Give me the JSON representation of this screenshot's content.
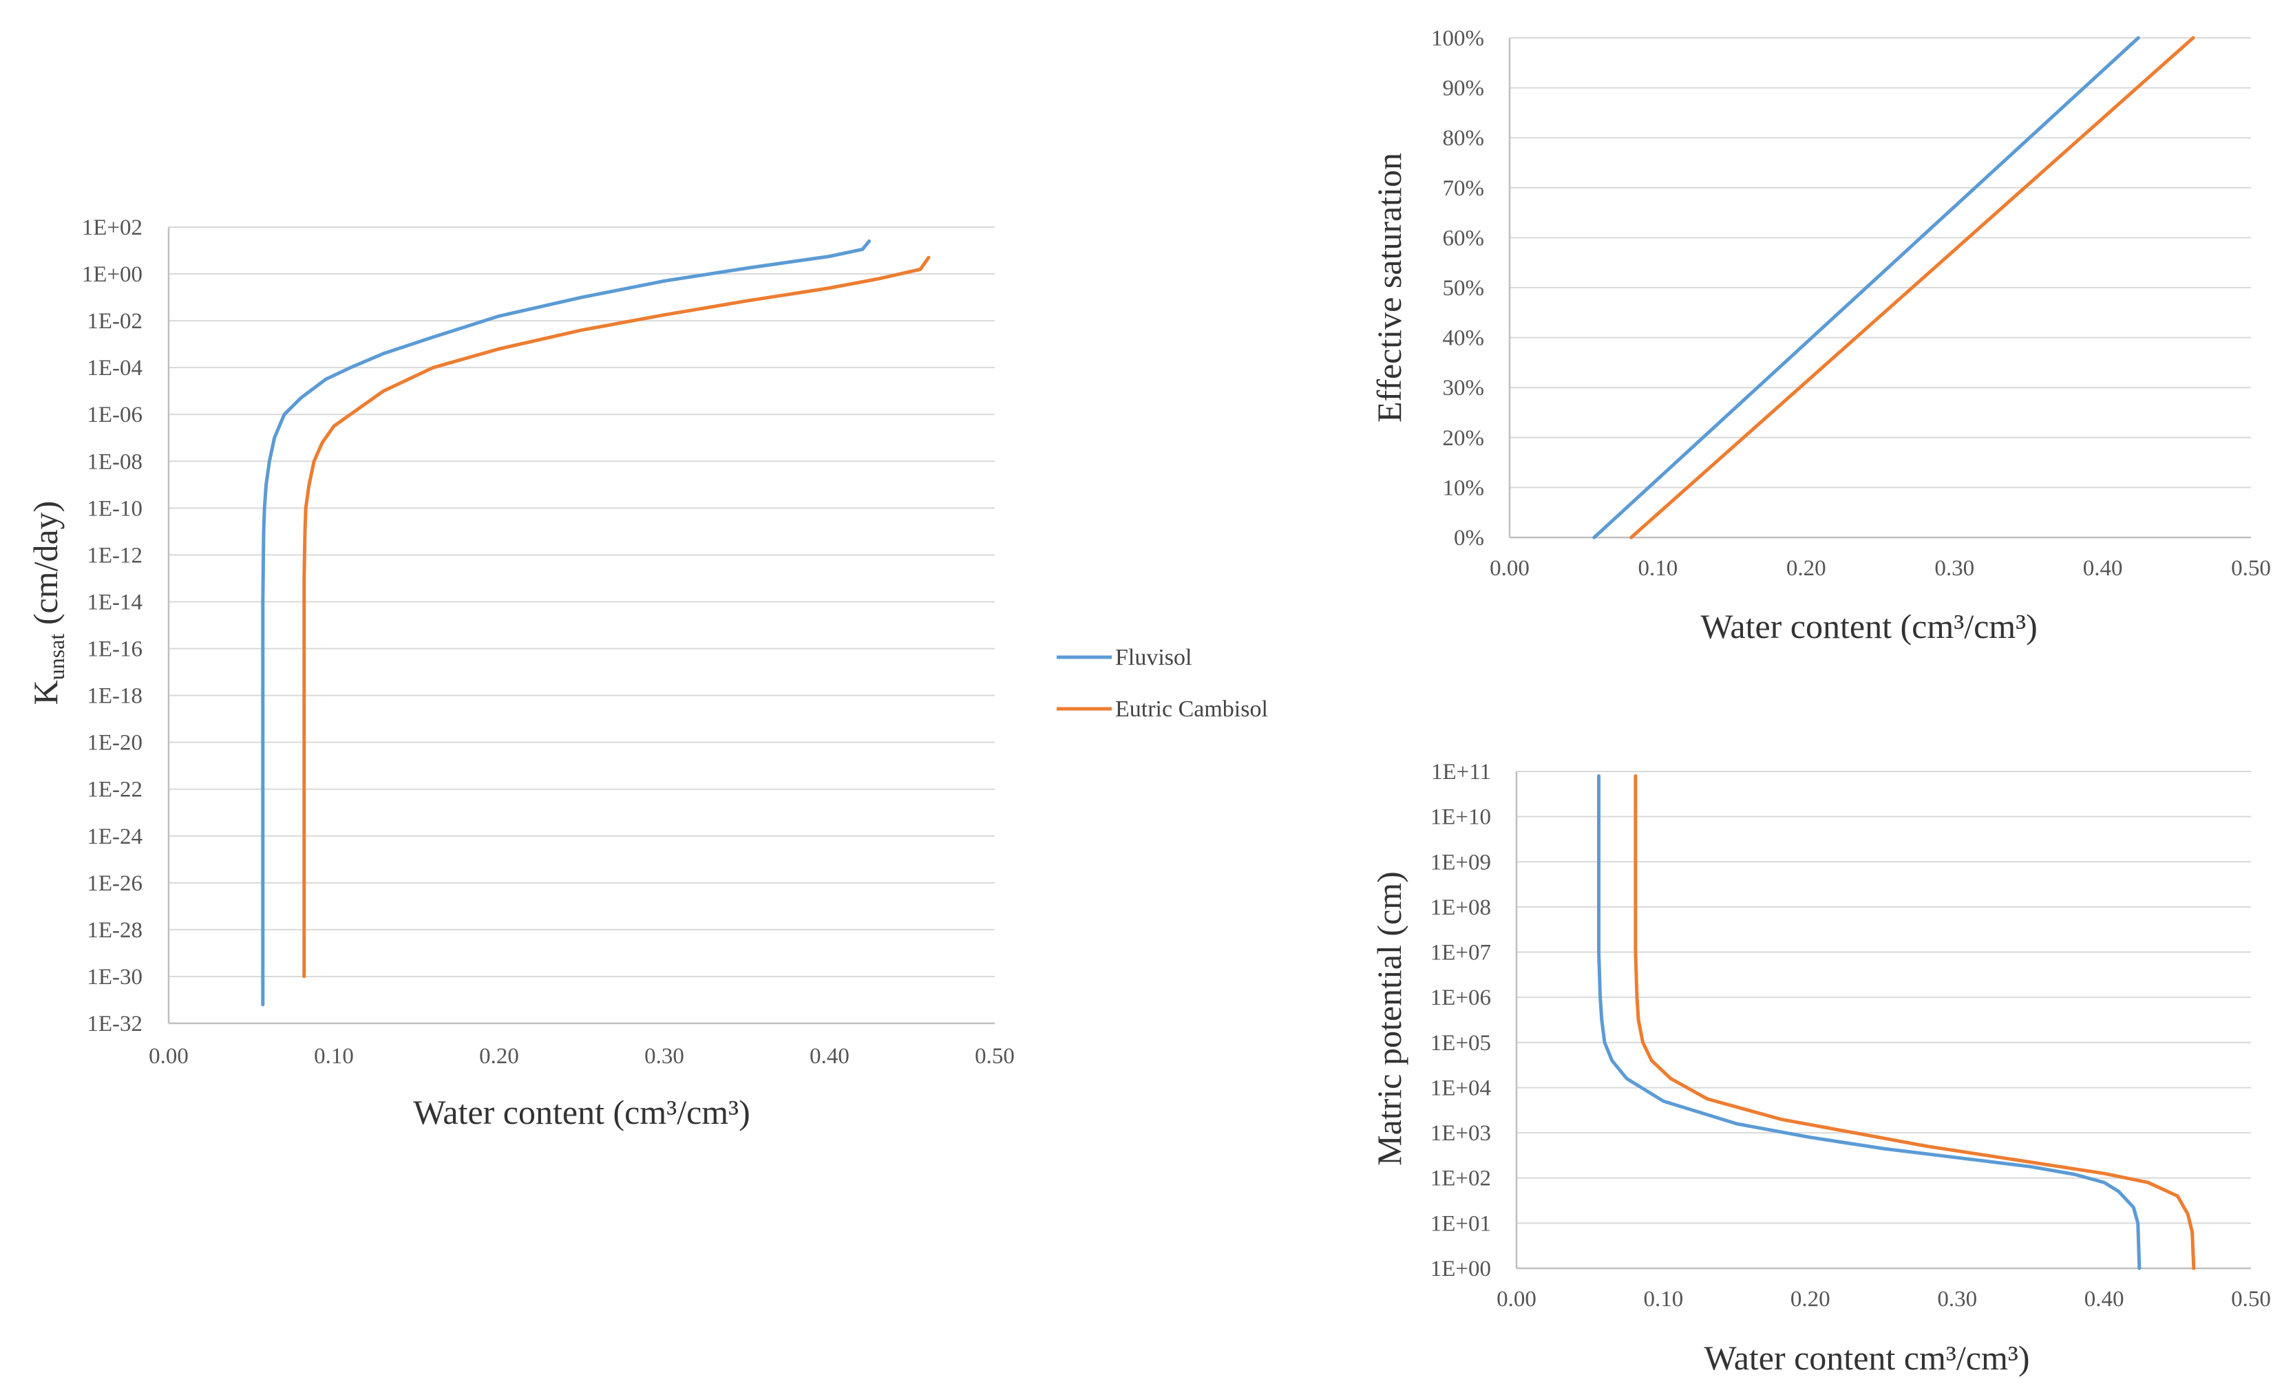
{
  "colors": {
    "fluvisol": "#5b9bd5",
    "cambisol": "#ed7d31"
  },
  "legend": [
    {
      "name": "Fluvisol",
      "color": "#5b9bd5"
    },
    {
      "name": "Eutric Cambisol",
      "color": "#ed7d31"
    }
  ],
  "chart_data": [
    {
      "id": "kunsat",
      "type": "line",
      "xscale": "linear",
      "yscale": "log",
      "xlabel": "Water content (cm³/cm³)",
      "ylabel_main": "K",
      "ylabel_sub": "unsat",
      "ylabel_rest": " (cm/day)",
      "xlim": [
        0,
        0.5
      ],
      "ylim_exp": [
        -32,
        2
      ],
      "x_ticks": [
        "0.00",
        "0.10",
        "0.20",
        "0.30",
        "0.40",
        "0.50"
      ],
      "y_ticks": [
        "1E+02",
        "1E+00",
        "1E-02",
        "1E-04",
        "1E-06",
        "1E-08",
        "1E-10",
        "1E-12",
        "1E-14",
        "1E-16",
        "1E-18",
        "1E-20",
        "1E-22",
        "1E-24",
        "1E-26",
        "1E-28",
        "1E-30",
        "1E-32"
      ],
      "series": [
        {
          "name": "Fluvisol",
          "color": "#5b9bd5",
          "points": [
            [
              0.057,
              -31.2
            ],
            [
              0.057,
              -20
            ],
            [
              0.057,
              -14
            ],
            [
              0.0575,
              -11
            ],
            [
              0.058,
              -10
            ],
            [
              0.059,
              -9
            ],
            [
              0.061,
              -8
            ],
            [
              0.064,
              -7
            ],
            [
              0.07,
              -6
            ],
            [
              0.08,
              -5.3
            ],
            [
              0.095,
              -4.5
            ],
            [
              0.11,
              -4
            ],
            [
              0.13,
              -3.4
            ],
            [
              0.16,
              -2.7
            ],
            [
              0.2,
              -1.8
            ],
            [
              0.25,
              -1
            ],
            [
              0.3,
              -0.3
            ],
            [
              0.35,
              0.25
            ],
            [
              0.4,
              0.75
            ],
            [
              0.42,
              1.05
            ],
            [
              0.424,
              1.4
            ]
          ]
        },
        {
          "name": "Eutric Cambisol",
          "color": "#ed7d31",
          "points": [
            [
              0.082,
              -30
            ],
            [
              0.082,
              -20
            ],
            [
              0.082,
              -13
            ],
            [
              0.0825,
              -11
            ],
            [
              0.083,
              -10
            ],
            [
              0.085,
              -9
            ],
            [
              0.088,
              -8
            ],
            [
              0.093,
              -7.2
            ],
            [
              0.1,
              -6.5
            ],
            [
              0.11,
              -6
            ],
            [
              0.13,
              -5
            ],
            [
              0.16,
              -4
            ],
            [
              0.2,
              -3.2
            ],
            [
              0.25,
              -2.4
            ],
            [
              0.3,
              -1.75
            ],
            [
              0.35,
              -1.15
            ],
            [
              0.4,
              -0.6
            ],
            [
              0.43,
              -0.2
            ],
            [
              0.455,
              0.2
            ],
            [
              0.46,
              0.7
            ]
          ]
        }
      ]
    },
    {
      "id": "saturation",
      "type": "line",
      "xscale": "linear",
      "yscale": "linear",
      "xlabel": "Water content (cm³/cm³)",
      "ylabel": "Effective saturation",
      "xlim": [
        0,
        0.5
      ],
      "ylim": [
        0,
        100
      ],
      "x_ticks": [
        "0.00",
        "0.10",
        "0.20",
        "0.30",
        "0.40",
        "0.50"
      ],
      "y_ticks": [
        "0%",
        "10%",
        "20%",
        "30%",
        "40%",
        "50%",
        "60%",
        "70%",
        "80%",
        "90%",
        "100%"
      ],
      "series": [
        {
          "name": "Fluvisol",
          "color": "#5b9bd5",
          "points": [
            [
              0.057,
              0
            ],
            [
              0.424,
              100
            ]
          ]
        },
        {
          "name": "Eutric Cambisol",
          "color": "#ed7d31",
          "points": [
            [
              0.082,
              0
            ],
            [
              0.461,
              100
            ]
          ]
        }
      ]
    },
    {
      "id": "matric",
      "type": "line",
      "xscale": "linear",
      "yscale": "log",
      "xlabel": "Water content cm³/cm³)",
      "ylabel": "Matric potential (cm)",
      "xlim": [
        0,
        0.5
      ],
      "ylim_exp": [
        0,
        11
      ],
      "x_ticks": [
        "0.00",
        "0.10",
        "0.20",
        "0.30",
        "0.40",
        "0.50"
      ],
      "y_ticks": [
        "1E+00",
        "1E+01",
        "1E+02",
        "1E+03",
        "1E+04",
        "1E+05",
        "1E+06",
        "1E+07",
        "1E+08",
        "1E+09",
        "1E+10",
        "1E+11"
      ],
      "series": [
        {
          "name": "Fluvisol",
          "color": "#5b9bd5",
          "points": [
            [
              0.056,
              10.9
            ],
            [
              0.056,
              9
            ],
            [
              0.056,
              7
            ],
            [
              0.057,
              6
            ],
            [
              0.058,
              5.5
            ],
            [
              0.06,
              5
            ],
            [
              0.065,
              4.6
            ],
            [
              0.075,
              4.2
            ],
            [
              0.1,
              3.7
            ],
            [
              0.15,
              3.2
            ],
            [
              0.2,
              2.9
            ],
            [
              0.25,
              2.65
            ],
            [
              0.3,
              2.45
            ],
            [
              0.35,
              2.25
            ],
            [
              0.38,
              2.08
            ],
            [
              0.4,
              1.9
            ],
            [
              0.41,
              1.7
            ],
            [
              0.42,
              1.35
            ],
            [
              0.423,
              1
            ],
            [
              0.424,
              0
            ]
          ]
        },
        {
          "name": "Eutric Cambisol",
          "color": "#ed7d31",
          "points": [
            [
              0.081,
              10.9
            ],
            [
              0.081,
              9
            ],
            [
              0.081,
              7
            ],
            [
              0.082,
              6
            ],
            [
              0.083,
              5.5
            ],
            [
              0.086,
              5
            ],
            [
              0.092,
              4.6
            ],
            [
              0.105,
              4.2
            ],
            [
              0.13,
              3.75
            ],
            [
              0.18,
              3.3
            ],
            [
              0.23,
              3.0
            ],
            [
              0.28,
              2.7
            ],
            [
              0.33,
              2.45
            ],
            [
              0.37,
              2.25
            ],
            [
              0.4,
              2.1
            ],
            [
              0.43,
              1.9
            ],
            [
              0.45,
              1.6
            ],
            [
              0.457,
              1.2
            ],
            [
              0.46,
              0.8
            ],
            [
              0.461,
              0
            ]
          ]
        }
      ]
    }
  ]
}
